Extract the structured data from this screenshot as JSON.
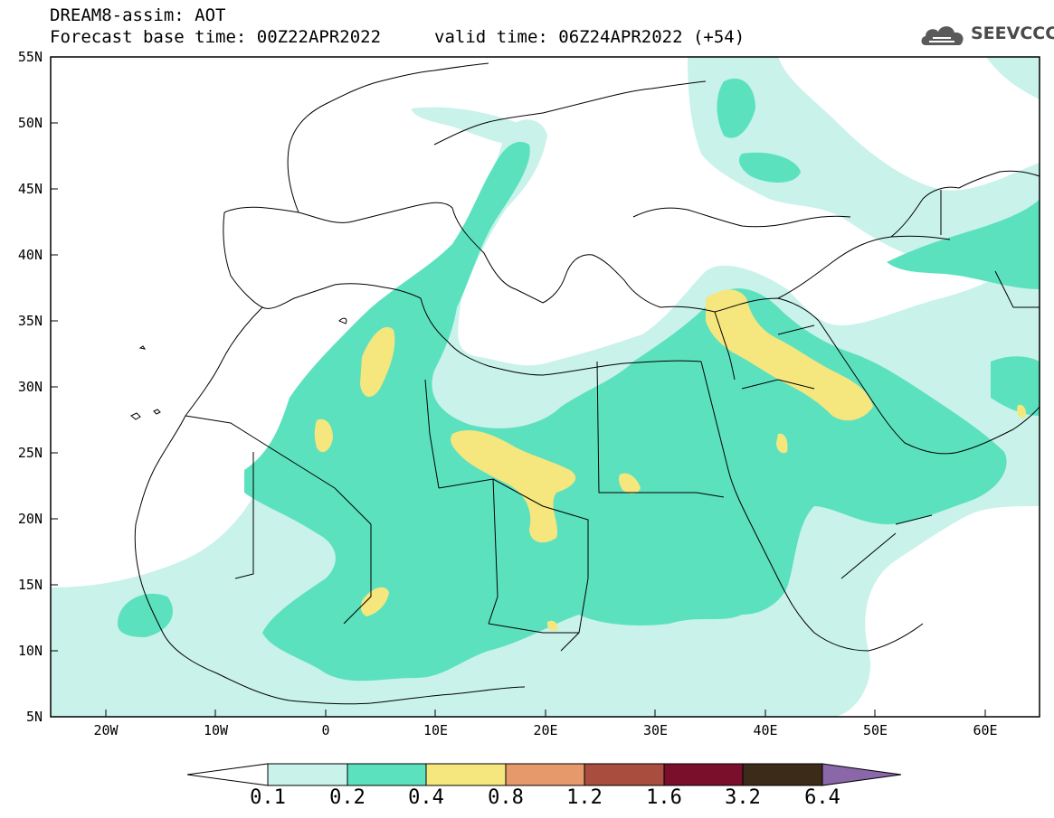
{
  "header": {
    "title": "DREAM8-assim: AOT",
    "base_time": "Forecast base time: 00Z22APR2022",
    "valid_time": "valid time: 06Z24APR2022 (+54)"
  },
  "logo": {
    "text": "SEEVCCC",
    "icon": "cloud-icon"
  },
  "axes": {
    "lat_labels": [
      "55N",
      "50N",
      "45N",
      "40N",
      "35N",
      "30N",
      "25N",
      "20N",
      "15N",
      "10N",
      "5N"
    ],
    "lon_labels": [
      "20W",
      "10W",
      "0",
      "10E",
      "20E",
      "30E",
      "40E",
      "50E",
      "60E"
    ]
  },
  "colorbar": {
    "labels": [
      "0.1",
      "0.2",
      "0.4",
      "0.8",
      "1.2",
      "1.6",
      "3.2",
      "6.4"
    ],
    "colors": [
      "#ffffff",
      "#c8f2ea",
      "#5ce1bf",
      "#f5e67e",
      "#e69a6b",
      "#a94d3f",
      "#7a0f2c",
      "#3d2b1a",
      "#8a67a8"
    ]
  },
  "colors": {
    "aot_0_1": "#c8f2ea",
    "aot_0_2": "#5ce1bf",
    "aot_0_4": "#f5e67e"
  }
}
